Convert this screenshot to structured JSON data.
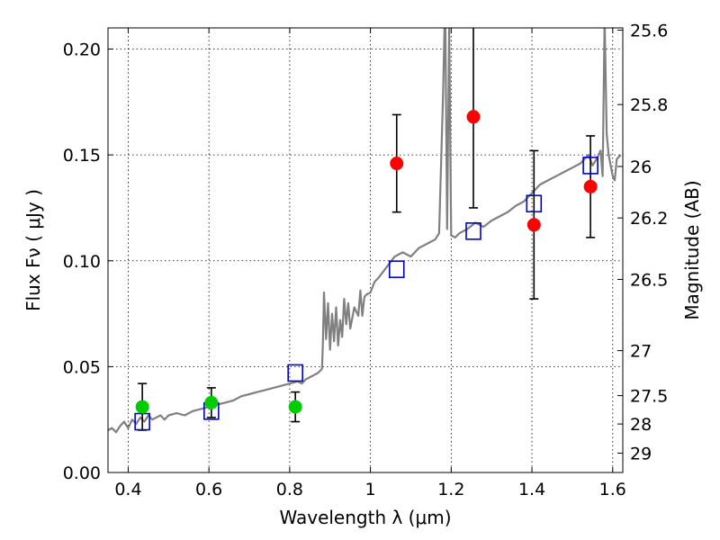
{
  "chart_data": {
    "type": "scatter",
    "xlabel": "Wavelength  λ (μm)",
    "ylabel": "Flux  Fν  ( μJy )",
    "y2label": "Magnitude (AB)",
    "xlim": [
      0.35,
      1.625
    ],
    "ylim": [
      0.0,
      0.21
    ],
    "grid": true,
    "x_ticks": [
      {
        "value": 0.4,
        "label": "0.4"
      },
      {
        "value": 0.6,
        "label": "0.6"
      },
      {
        "value": 0.8,
        "label": "0.8"
      },
      {
        "value": 1.0,
        "label": "1"
      },
      {
        "value": 1.2,
        "label": "1.2"
      },
      {
        "value": 1.4,
        "label": "1.4"
      },
      {
        "value": 1.6,
        "label": "1.6"
      }
    ],
    "y_ticks": [
      {
        "value": 0.0,
        "label": "0.00"
      },
      {
        "value": 0.05,
        "label": "0.05"
      },
      {
        "value": 0.1,
        "label": "0.10"
      },
      {
        "value": 0.15,
        "label": "0.15"
      },
      {
        "value": 0.2,
        "label": "0.20"
      }
    ],
    "y2_ticks": [
      {
        "value": 25.6,
        "label": "25.6"
      },
      {
        "value": 25.8,
        "label": "25.8"
      },
      {
        "value": 26.0,
        "label": "26"
      },
      {
        "value": 26.2,
        "label": "26.2"
      },
      {
        "value": 26.5,
        "label": "26.5"
      },
      {
        "value": 27.0,
        "label": "27"
      },
      {
        "value": 27.5,
        "label": "27.5"
      },
      {
        "value": 28.0,
        "label": "28"
      },
      {
        "value": 29.0,
        "label": "29"
      }
    ],
    "series": [
      {
        "kind": "line",
        "color": "#808080",
        "x": [
          0.35,
          0.36,
          0.37,
          0.38,
          0.39,
          0.4,
          0.41,
          0.42,
          0.43,
          0.44,
          0.45,
          0.46,
          0.47,
          0.48,
          0.49,
          0.5,
          0.52,
          0.54,
          0.56,
          0.58,
          0.6,
          0.62,
          0.64,
          0.66,
          0.68,
          0.7,
          0.72,
          0.74,
          0.76,
          0.78,
          0.8,
          0.82,
          0.83,
          0.84,
          0.85,
          0.86,
          0.87,
          0.875,
          0.88,
          0.882,
          0.885,
          0.89,
          0.895,
          0.9,
          0.905,
          0.91,
          0.915,
          0.92,
          0.925,
          0.93,
          0.935,
          0.94,
          0.945,
          0.95,
          0.96,
          0.97,
          0.975,
          0.98,
          0.985,
          0.99,
          1.0,
          1.01,
          1.02,
          1.04,
          1.06,
          1.08,
          1.1,
          1.12,
          1.14,
          1.16,
          1.17,
          1.18,
          1.185,
          1.19,
          1.195,
          1.2,
          1.21,
          1.22,
          1.24,
          1.26,
          1.28,
          1.3,
          1.32,
          1.34,
          1.36,
          1.38,
          1.4,
          1.42,
          1.44,
          1.46,
          1.48,
          1.5,
          1.52,
          1.54,
          1.55,
          1.56,
          1.57,
          1.575,
          1.58,
          1.585,
          1.59,
          1.595,
          1.6,
          1.605,
          1.61,
          1.62
        ],
        "y": [
          0.02,
          0.021,
          0.019,
          0.022,
          0.024,
          0.021,
          0.025,
          0.023,
          0.026,
          0.024,
          0.027,
          0.025,
          0.026,
          0.027,
          0.025,
          0.027,
          0.028,
          0.027,
          0.029,
          0.03,
          0.031,
          0.032,
          0.033,
          0.034,
          0.036,
          0.037,
          0.038,
          0.039,
          0.04,
          0.041,
          0.042,
          0.043,
          0.042,
          0.044,
          0.045,
          0.046,
          0.047,
          0.048,
          0.049,
          0.06,
          0.085,
          0.063,
          0.08,
          0.058,
          0.075,
          0.062,
          0.078,
          0.06,
          0.072,
          0.064,
          0.082,
          0.07,
          0.08,
          0.068,
          0.078,
          0.074,
          0.086,
          0.074,
          0.083,
          0.084,
          0.085,
          0.09,
          0.092,
          0.097,
          0.102,
          0.104,
          0.102,
          0.106,
          0.108,
          0.11,
          0.113,
          0.18,
          0.225,
          0.115,
          0.21,
          0.112,
          0.111,
          0.113,
          0.115,
          0.118,
          0.116,
          0.119,
          0.121,
          0.123,
          0.126,
          0.128,
          0.132,
          0.136,
          0.138,
          0.14,
          0.142,
          0.144,
          0.146,
          0.15,
          0.145,
          0.148,
          0.152,
          0.14,
          0.215,
          0.16,
          0.15,
          0.145,
          0.14,
          0.138,
          0.148,
          0.15
        ]
      },
      {
        "kind": "markers",
        "marker": "circle",
        "color": "#00cc00",
        "points": [
          {
            "x": 0.435,
            "y": 0.031,
            "err": 0.011
          },
          {
            "x": 0.606,
            "y": 0.033,
            "err": 0.007
          },
          {
            "x": 0.814,
            "y": 0.031,
            "err": 0.007
          }
        ]
      },
      {
        "kind": "markers",
        "marker": "circle",
        "color": "#ff0000",
        "points": [
          {
            "x": 1.065,
            "y": 0.146,
            "err": 0.023
          },
          {
            "x": 1.255,
            "y": 0.168,
            "err": 0.043
          },
          {
            "x": 1.405,
            "y": 0.117,
            "err": 0.035
          },
          {
            "x": 1.545,
            "y": 0.135,
            "err": 0.024
          }
        ]
      },
      {
        "kind": "markers",
        "marker": "open-square",
        "color": "#0000cc",
        "points": [
          {
            "x": 0.435,
            "y": 0.024
          },
          {
            "x": 0.606,
            "y": 0.029
          },
          {
            "x": 0.814,
            "y": 0.047
          },
          {
            "x": 1.065,
            "y": 0.096
          },
          {
            "x": 1.255,
            "y": 0.114
          },
          {
            "x": 1.405,
            "y": 0.127
          },
          {
            "x": 1.545,
            "y": 0.145
          }
        ]
      }
    ]
  }
}
